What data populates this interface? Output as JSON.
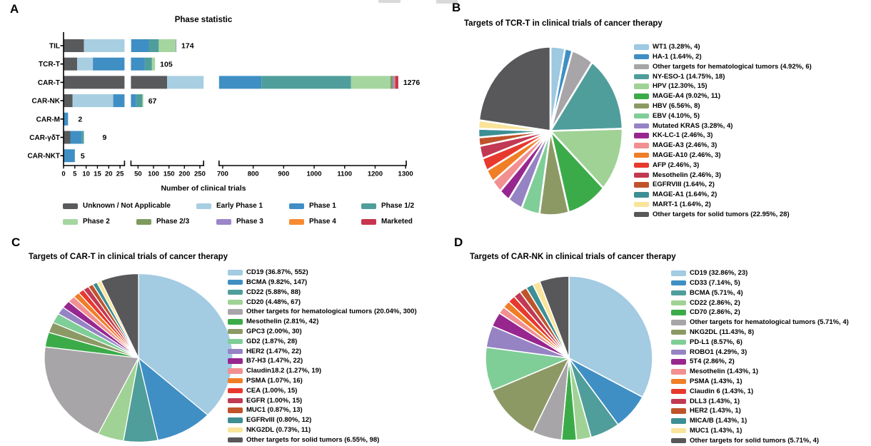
{
  "chart_data": [
    {
      "id": "A",
      "panel_label": "A",
      "type": "bar",
      "orientation": "horizontal",
      "stacked": true,
      "axis_break": true,
      "grid": false,
      "title": "Phase statistic",
      "xlabel": "Number of clinical trials",
      "categories": [
        "TIL",
        "TCR-T",
        "CAR-T",
        "CAR-NK",
        "CAR-M",
        "CAR-γδT",
        "CAR-NKT"
      ],
      "totals": [
        174,
        105,
        1276,
        67,
        2,
        9,
        5
      ],
      "series": [
        {
          "name": "Unknown / Not Applicable",
          "color": "#595a5c",
          "values": [
            9,
            6,
            144,
            4,
            0,
            3,
            0
          ]
        },
        {
          "name": "Early Phase 1",
          "color": "#a8cee2",
          "values": [
            19,
            7,
            336,
            18,
            0,
            0,
            0
          ]
        },
        {
          "name": "Phase 1",
          "color": "#3f8fc4",
          "values": [
            57,
            59,
            347,
            22,
            2,
            5,
            5
          ]
        },
        {
          "name": "Phase 1/2",
          "color": "#4f9e9b",
          "values": [
            32,
            23,
            294,
            20,
            0,
            1,
            0
          ]
        },
        {
          "name": "Phase 2",
          "color": "#a5d6a0",
          "values": [
            55,
            10,
            129,
            3,
            0,
            0,
            0
          ]
        },
        {
          "name": "Phase 2/3",
          "color": "#7d9b5d",
          "values": [
            0,
            0,
            8,
            0,
            0,
            0,
            0
          ]
        },
        {
          "name": "Phase 3",
          "color": "#9a86c8",
          "values": [
            2,
            0,
            6,
            0,
            0,
            0,
            0
          ]
        },
        {
          "name": "Phase 4",
          "color": "#f68b33",
          "values": [
            0,
            0,
            2,
            0,
            0,
            0,
            0
          ]
        },
        {
          "name": "Marketed",
          "color": "#c9344e",
          "values": [
            0,
            0,
            10,
            0,
            0,
            0,
            0
          ]
        }
      ],
      "x_axis_segments": [
        {
          "ticks": [
            0,
            5,
            10,
            15,
            20,
            25
          ]
        },
        {
          "ticks": [
            50,
            100,
            150,
            200,
            250
          ]
        },
        {
          "ticks": [
            700,
            800,
            900,
            1000,
            1100,
            1200,
            1300
          ]
        }
      ]
    },
    {
      "id": "B",
      "panel_label": "B",
      "type": "pie",
      "title": "Targets of TCR-T in clinical trials of cancer therapy",
      "legend_position": "right",
      "slices": [
        {
          "name": "WT1",
          "pct": "3.28%",
          "count": 4,
          "color": "#9dc9e1"
        },
        {
          "name": "HA-1",
          "pct": "1.64%",
          "count": 2,
          "color": "#3f8fc4"
        },
        {
          "name": "Other targets for hematological tumors",
          "pct": "4.92%",
          "count": 6,
          "color": "#a7a5a8"
        },
        {
          "name": "NY-ESO-1",
          "pct": "14.75%",
          "count": 18,
          "color": "#4f9e9b"
        },
        {
          "name": "HPV",
          "pct": "12.30%",
          "count": 15,
          "color": "#a0d295"
        },
        {
          "name": "MAGE-A4",
          "pct": "9.02%",
          "count": 11,
          "color": "#3bab49"
        },
        {
          "name": "HBV",
          "pct": "6.56%",
          "count": 8,
          "color": "#8c9965"
        },
        {
          "name": "EBV",
          "pct": "4.10%",
          "count": 5,
          "color": "#7fce97"
        },
        {
          "name": "Mutated KRAS",
          "pct": "3.28%",
          "count": 4,
          "color": "#9583c4"
        },
        {
          "name": "KK-LC-1",
          "pct": "2.46%",
          "count": 3,
          "color": "#97278f"
        },
        {
          "name": "MAGE-A3",
          "pct": "2.46%",
          "count": 3,
          "color": "#f29091"
        },
        {
          "name": "MAGE-A10",
          "pct": "2.46%",
          "count": 3,
          "color": "#f07e26"
        },
        {
          "name": "AFP",
          "pct": "2.46%",
          "count": 3,
          "color": "#e8392e"
        },
        {
          "name": "Mesothelin",
          "pct": "2.46%",
          "count": 3,
          "color": "#c13953"
        },
        {
          "name": "EGFRVIII",
          "pct": "1.64%",
          "count": 2,
          "color": "#c0532b"
        },
        {
          "name": "MAGE-A1",
          "pct": "1.64%",
          "count": 2,
          "color": "#3d8f94"
        },
        {
          "name": "MART-1",
          "pct": "1.64%",
          "count": 2,
          "color": "#f9e49a"
        },
        {
          "name": "Other targets for solid tumors",
          "pct": "22.95%",
          "count": 28,
          "color": "#58585a"
        }
      ]
    },
    {
      "id": "C",
      "panel_label": "C",
      "type": "pie",
      "title": "Targets of CAR-T in clinical trials of cancer therapy",
      "legend_position": "right",
      "slices": [
        {
          "name": "CD19",
          "pct": "36.87%",
          "count": 552,
          "color": "#a3cbe2"
        },
        {
          "name": "BCMA",
          "pct": "9.82%",
          "count": 147,
          "color": "#3f8fc4"
        },
        {
          "name": "CD22",
          "pct": "5.88%",
          "count": 88,
          "color": "#4f9e9b"
        },
        {
          "name": "CD20",
          "pct": "4.48%",
          "count": 67,
          "color": "#a0d295"
        },
        {
          "name": "Other targets for hematological tumors",
          "pct": "20.04%",
          "count": 300,
          "color": "#a7a5a8"
        },
        {
          "name": "Mesothelin",
          "pct": "2.81%",
          "count": 42,
          "color": "#3bab49"
        },
        {
          "name": "GPC3",
          "pct": "2.00%",
          "count": 30,
          "color": "#8c9965"
        },
        {
          "name": "GD2",
          "pct": "1.87%",
          "count": 28,
          "color": "#7fce97"
        },
        {
          "name": "HER2",
          "pct": "1.47%",
          "count": 22,
          "color": "#9583c4"
        },
        {
          "name": "B7-H3",
          "pct": "1.47%",
          "count": 22,
          "color": "#97278f"
        },
        {
          "name": "Claudin18.2",
          "pct": "1.27%",
          "count": 19,
          "color": "#f29091"
        },
        {
          "name": "PSMA",
          "pct": "1.07%",
          "count": 16,
          "color": "#f07e26"
        },
        {
          "name": "CEA",
          "pct": "1.00%",
          "count": 15,
          "color": "#e8392e"
        },
        {
          "name": "EGFR",
          "pct": "1.00%",
          "count": 15,
          "color": "#c13953"
        },
        {
          "name": "MUC1",
          "pct": "0.87%",
          "count": 13,
          "color": "#c0532b"
        },
        {
          "name": "EGFRvIII",
          "pct": "0.80%",
          "count": 12,
          "color": "#3d8f94"
        },
        {
          "name": "NKG2DL",
          "pct": "0.73%",
          "count": 11,
          "color": "#f9e49a"
        },
        {
          "name": "Other targets for solid tumors",
          "pct": "6.55%",
          "count": 98,
          "color": "#58585a"
        }
      ]
    },
    {
      "id": "D",
      "panel_label": "D",
      "type": "pie",
      "title": "Targets of CAR-NK in clinical trials of cancer therapy",
      "legend_position": "right",
      "slices": [
        {
          "name": "CD19",
          "pct": "32.86%",
          "count": 23,
          "color": "#a3cbe2"
        },
        {
          "name": "CD33",
          "pct": "7.14%",
          "count": 5,
          "color": "#3f8fc4"
        },
        {
          "name": "BCMA",
          "pct": "5.71%",
          "count": 4,
          "color": "#4f9e9b"
        },
        {
          "name": "CD22",
          "pct": "2.86%",
          "count": 2,
          "color": "#a0d295"
        },
        {
          "name": "CD70",
          "pct": "2.86%",
          "count": 2,
          "color": "#3bab49"
        },
        {
          "name": "Other targets for hematological tumors",
          "pct": "5.71%",
          "count": 4,
          "color": "#a7a5a8"
        },
        {
          "name": "NKG2DL",
          "pct": "11.43%",
          "count": 8,
          "color": "#8c9965"
        },
        {
          "name": "PD-L1",
          "pct": "8.57%",
          "count": 6,
          "color": "#7fce97"
        },
        {
          "name": "ROBO1",
          "pct": "4.29%",
          "count": 3,
          "color": "#9583c4"
        },
        {
          "name": "5T4",
          "pct": "2.86%",
          "count": 2,
          "color": "#97278f"
        },
        {
          "name": "Mesothelin",
          "pct": "1.43%",
          "count": 1,
          "color": "#f29091"
        },
        {
          "name": "PSMA",
          "pct": "1.43%",
          "count": 1,
          "color": "#f07e26"
        },
        {
          "name": "Claudin 6",
          "pct": "1.43%",
          "count": 1,
          "color": "#e8392e"
        },
        {
          "name": "DLL3",
          "pct": "1.43%",
          "count": 1,
          "color": "#c13953"
        },
        {
          "name": "HER2",
          "pct": "1.43%",
          "count": 1,
          "color": "#c0532b"
        },
        {
          "name": "MICA/B",
          "pct": "1.43%",
          "count": 1,
          "color": "#3d8f94"
        },
        {
          "name": "MUC1",
          "pct": "1.43%",
          "count": 1,
          "color": "#f9e49a"
        },
        {
          "name": "Other targets for solid tumors",
          "pct": "5.71%",
          "count": 4,
          "color": "#58585a"
        }
      ]
    }
  ]
}
